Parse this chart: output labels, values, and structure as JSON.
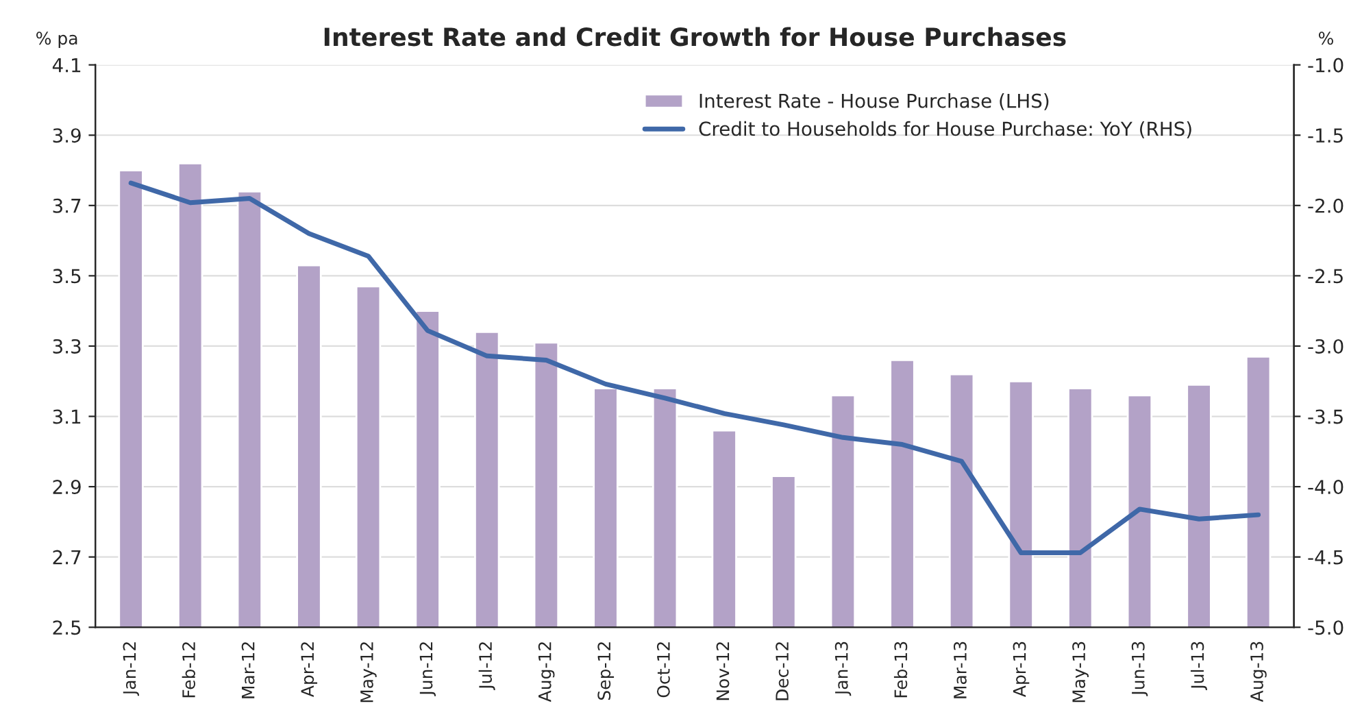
{
  "chart_data": {
    "type": "bar",
    "title": "Interest Rate and Credit Growth for House Purchases",
    "ylabel": "% pa",
    "y2label": "%",
    "categories": [
      "Jan-12",
      "Feb-12",
      "Mar-12",
      "Apr-12",
      "May-12",
      "Jun-12",
      "Jul-12",
      "Aug-12",
      "Sep-12",
      "Oct-12",
      "Nov-12",
      "Dec-12",
      "Jan-13",
      "Feb-13",
      "Mar-13",
      "Apr-13",
      "May-13",
      "Jun-13",
      "Jul-13",
      "Aug-13"
    ],
    "series": [
      {
        "name": "Interest Rate - House Purchase (LHS)",
        "color": "#b3a2c7",
        "values": [
          3.8,
          3.82,
          3.74,
          3.53,
          3.47,
          3.4,
          3.34,
          3.31,
          3.18,
          3.18,
          3.06,
          2.93,
          3.16,
          3.26,
          3.22,
          3.2,
          3.18,
          3.16,
          3.19,
          3.27
        ]
      },
      {
        "name": "Credit to Households for House Purchase: YoY (RHS)",
        "type": "line",
        "axis": "y2",
        "color": "#3f68a8",
        "values": [
          -1.84,
          -1.98,
          -1.95,
          -2.2,
          -2.36,
          -2.89,
          -3.07,
          -3.1,
          -3.27,
          -3.37,
          -3.48,
          -3.56,
          -3.65,
          -3.7,
          -3.82,
          -4.47,
          -4.47,
          -4.16,
          -4.23,
          -4.2
        ]
      }
    ],
    "ylim": [
      2.5,
      4.1
    ],
    "yticks": [
      {
        "value": 2.5,
        "label": "2.5"
      },
      {
        "value": 2.7,
        "label": "2.7"
      },
      {
        "value": 2.9,
        "label": "2.9"
      },
      {
        "value": 3.1,
        "label": "3.1"
      },
      {
        "value": 3.3,
        "label": "3.3"
      },
      {
        "value": 3.5,
        "label": "3.5"
      },
      {
        "value": 3.7,
        "label": "3.7"
      },
      {
        "value": 3.9,
        "label": "3.9"
      },
      {
        "value": 4.1,
        "label": "4.1"
      }
    ],
    "y2lim": [
      -5.0,
      -1.0
    ],
    "y2ticks": [
      {
        "value": -5.0,
        "label": "-5.0"
      },
      {
        "value": -4.5,
        "label": "-4.5"
      },
      {
        "value": -4.0,
        "label": "-4.0"
      },
      {
        "value": -3.5,
        "label": "-3.5"
      },
      {
        "value": -3.0,
        "label": "-3.0"
      },
      {
        "value": -2.5,
        "label": "-2.5"
      },
      {
        "value": -2.0,
        "label": "-2.0"
      },
      {
        "value": -1.5,
        "label": "-1.5"
      },
      {
        "value": -1.0,
        "label": "-1.0"
      }
    ],
    "grid": "y",
    "legend": "top right"
  }
}
